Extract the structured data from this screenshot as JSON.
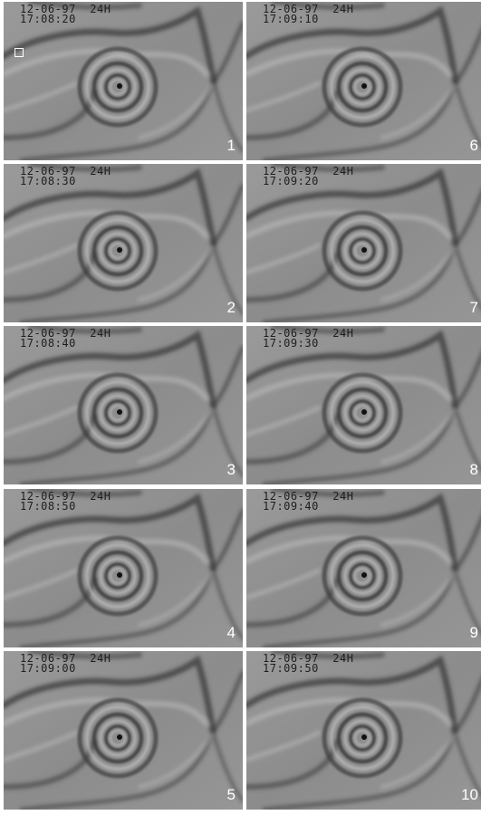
{
  "frames": [
    {
      "date": "12-06-97",
      "mode": "24H",
      "time": "17:08:20",
      "number": "1"
    },
    {
      "date": "12-06-97",
      "mode": "24H",
      "time": "17:08:30",
      "number": "2"
    },
    {
      "date": "12-06-97",
      "mode": "24H",
      "time": "17:08:40",
      "number": "3"
    },
    {
      "date": "12-06-97",
      "mode": "24H",
      "time": "17:08:50",
      "number": "4"
    },
    {
      "date": "12-06-97",
      "mode": "24H",
      "time": "17:09:00",
      "number": "5"
    },
    {
      "date": "12-06-97",
      "mode": "24H",
      "time": "17:09:10",
      "number": "6"
    },
    {
      "date": "12-06-97",
      "mode": "24H",
      "time": "17:09:20",
      "number": "7"
    },
    {
      "date": "12-06-97",
      "mode": "24H",
      "time": "17:09:30",
      "number": "8"
    },
    {
      "date": "12-06-97",
      "mode": "24H",
      "time": "17:09:40",
      "number": "9"
    },
    {
      "date": "12-06-97",
      "mode": "24H",
      "time": "17:09:50",
      "number": "10"
    }
  ],
  "colors": {
    "background": "#8f8f8f",
    "band": "#3a3a3a",
    "highlight": "#c4c4c4",
    "label": "#ffffff"
  }
}
